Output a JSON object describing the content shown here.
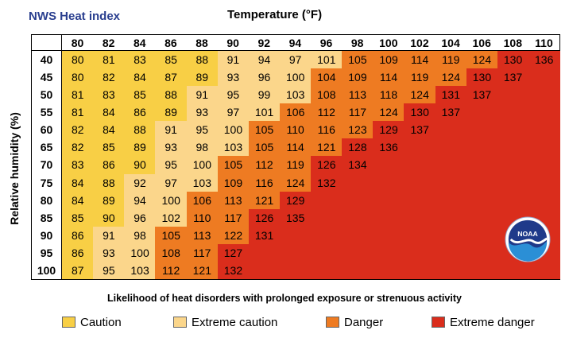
{
  "chart_data": {
    "type": "heatmap",
    "title": "NWS Heat index",
    "xlabel": "Temperature (°F)",
    "ylabel": "Relative humidity (%)",
    "x": [
      80,
      82,
      84,
      86,
      88,
      90,
      92,
      94,
      96,
      98,
      100,
      102,
      104,
      106,
      108,
      110
    ],
    "y": [
      40,
      45,
      50,
      55,
      60,
      65,
      70,
      75,
      80,
      85,
      90,
      95,
      100
    ],
    "values": [
      [
        80,
        81,
        83,
        85,
        88,
        91,
        94,
        97,
        101,
        105,
        109,
        114,
        119,
        124,
        130,
        136
      ],
      [
        80,
        82,
        84,
        87,
        89,
        93,
        96,
        100,
        104,
        109,
        114,
        119,
        124,
        130,
        137,
        null
      ],
      [
        81,
        83,
        85,
        88,
        91,
        95,
        99,
        103,
        108,
        113,
        118,
        124,
        131,
        137,
        null,
        null
      ],
      [
        81,
        84,
        86,
        89,
        93,
        97,
        101,
        106,
        112,
        117,
        124,
        130,
        137,
        null,
        null,
        null
      ],
      [
        82,
        84,
        88,
        91,
        95,
        100,
        105,
        110,
        116,
        123,
        129,
        137,
        null,
        null,
        null,
        null
      ],
      [
        82,
        85,
        89,
        93,
        98,
        103,
        105,
        114,
        121,
        128,
        136,
        null,
        null,
        null,
        null,
        null
      ],
      [
        83,
        86,
        90,
        95,
        100,
        105,
        112,
        119,
        126,
        134,
        null,
        null,
        null,
        null,
        null,
        null
      ],
      [
        84,
        88,
        92,
        97,
        103,
        109,
        116,
        124,
        132,
        null,
        null,
        null,
        null,
        null,
        null,
        null
      ],
      [
        84,
        89,
        94,
        100,
        106,
        113,
        121,
        129,
        null,
        null,
        null,
        null,
        null,
        null,
        null,
        null
      ],
      [
        85,
        90,
        96,
        102,
        110,
        117,
        126,
        135,
        null,
        null,
        null,
        null,
        null,
        null,
        null,
        null
      ],
      [
        86,
        91,
        98,
        105,
        113,
        122,
        131,
        null,
        null,
        null,
        null,
        null,
        null,
        null,
        null,
        null
      ],
      [
        86,
        93,
        100,
        108,
        117,
        127,
        null,
        null,
        null,
        null,
        null,
        null,
        null,
        null,
        null,
        null
      ],
      [
        87,
        95,
        103,
        112,
        121,
        132,
        null,
        null,
        null,
        null,
        null,
        null,
        null,
        null,
        null,
        null
      ]
    ],
    "categories_legend": [
      {
        "name": "Caution",
        "color": "#f8cf45"
      },
      {
        "name": "Extreme caution",
        "color": "#fbd68b"
      },
      {
        "name": "Danger",
        "color": "#ee7b22"
      },
      {
        "name": "Extreme danger",
        "color": "#da2d1c"
      }
    ],
    "note": "Likelihood of heat disorders with prolonged exposure or strenuous activity",
    "logo_text": "NOAA"
  }
}
